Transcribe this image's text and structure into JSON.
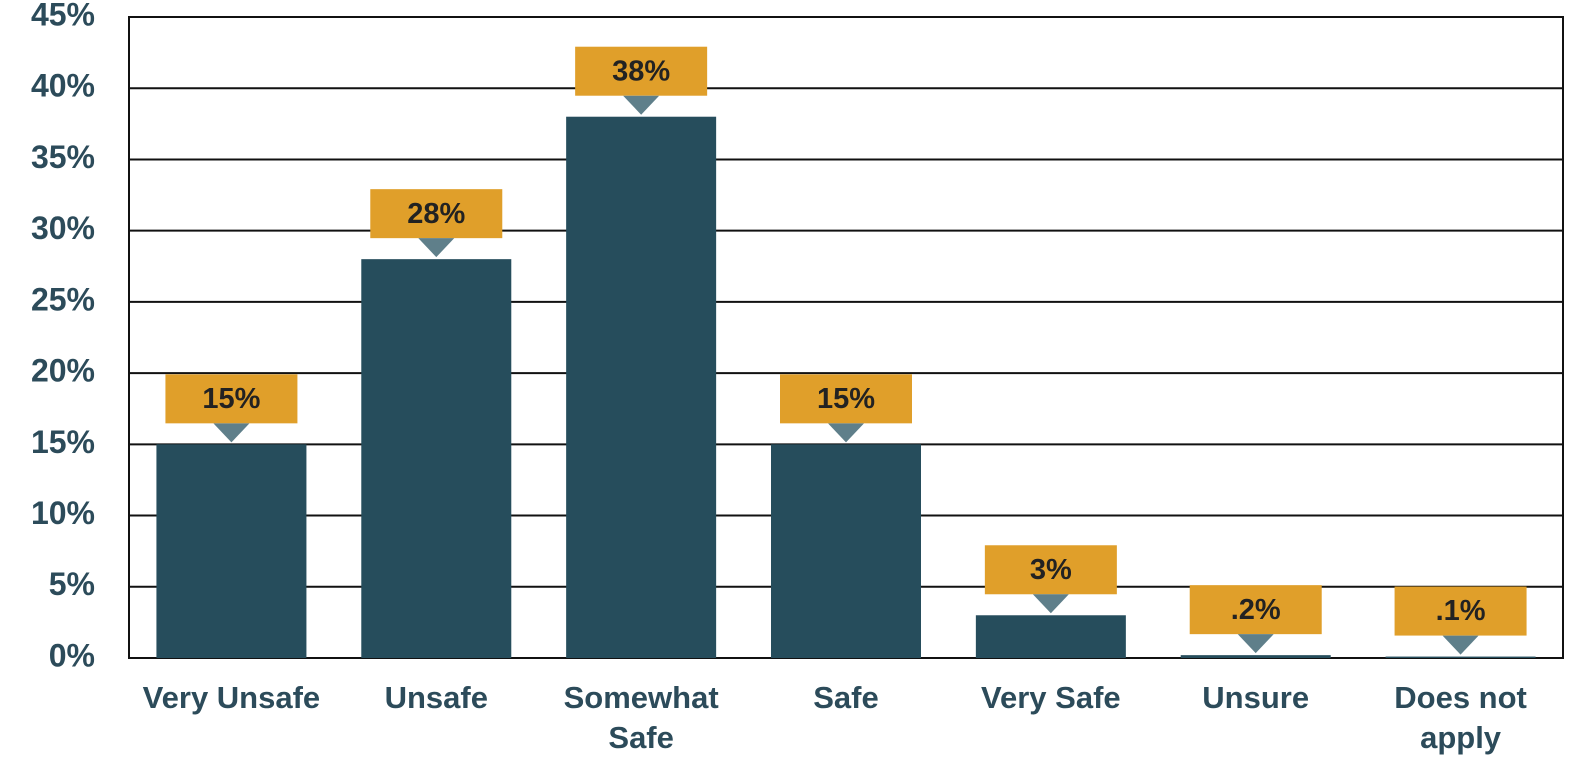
{
  "chart_data": {
    "type": "bar",
    "categories": [
      "Very Unsafe",
      "Unsafe",
      "Somewhat Safe",
      "Safe",
      "Very Safe",
      "Unsure",
      "Does not apply"
    ],
    "values": [
      15,
      28,
      38,
      15,
      3,
      0.2,
      0.1
    ],
    "value_labels": [
      "15%",
      "28%",
      "38%",
      "15%",
      "3%",
      ".2%",
      ".1%"
    ],
    "color": "#264d5c",
    "label_color": "#e09f2a",
    "ylim": [
      0,
      45
    ],
    "yticks": [
      {
        "value": 0,
        "label": "0%"
      },
      {
        "value": 5,
        "label": "5%"
      },
      {
        "value": 10,
        "label": "10%"
      },
      {
        "value": 15,
        "label": "15%"
      },
      {
        "value": 20,
        "label": "20%"
      },
      {
        "value": 25,
        "label": "25%"
      },
      {
        "value": 30,
        "label": "30%"
      },
      {
        "value": 35,
        "label": "35%"
      },
      {
        "value": 40,
        "label": "40%"
      },
      {
        "value": 45,
        "label": "45%"
      }
    ],
    "grid": true
  }
}
